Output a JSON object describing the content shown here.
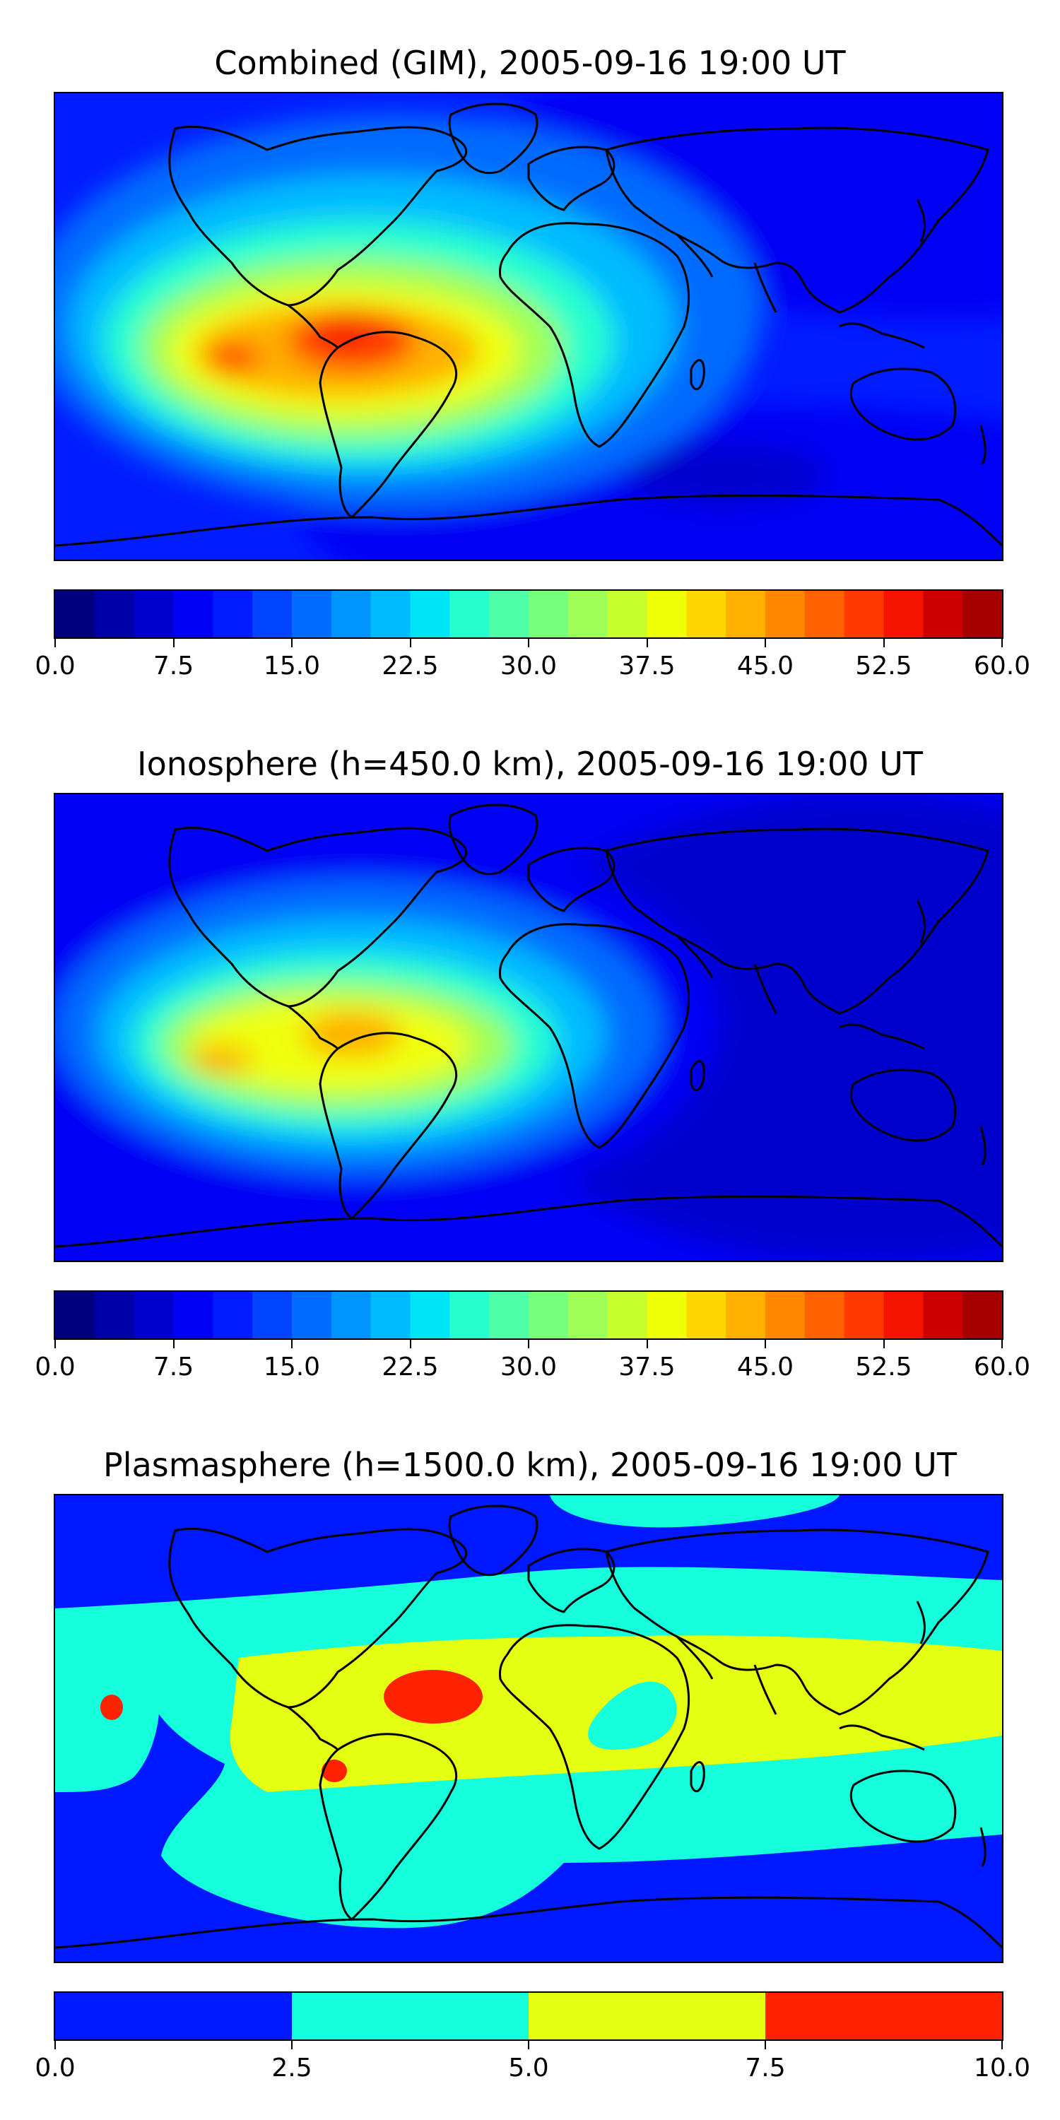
{
  "panels": [
    {
      "title": "Combined (GIM), 2005-09-16 19:00 UT",
      "colorbar": {
        "ticks": [
          "0.0",
          "7.5",
          "15.0",
          "22.5",
          "30.0",
          "37.5",
          "45.0",
          "52.5",
          "60.0"
        ],
        "range": [
          0,
          60
        ],
        "levels": 24
      }
    },
    {
      "title": "Ionosphere  (h=450.0 km), 2005-09-16 19:00 UT",
      "colorbar": {
        "ticks": [
          "0.0",
          "7.5",
          "15.0",
          "22.5",
          "30.0",
          "37.5",
          "45.0",
          "52.5",
          "60.0"
        ],
        "range": [
          0,
          60
        ],
        "levels": 24
      }
    },
    {
      "title": "Plasmasphere (h=1500.0 km), 2005-09-16 19:00 UT",
      "colorbar": {
        "ticks": [
          "0.0",
          "2.5",
          "5.0",
          "7.5",
          "10.0"
        ],
        "range": [
          0,
          10
        ],
        "levels": 4
      }
    }
  ],
  "colors": {
    "jet24": [
      "#00007f",
      "#0000a6",
      "#0000cd",
      "#0000f4",
      "#001cff",
      "#0044ff",
      "#006cff",
      "#0094ff",
      "#00bcff",
      "#00e4f7",
      "#27ffcf",
      "#4fffa7",
      "#77ff7f",
      "#9fff57",
      "#c7ff2f",
      "#efff07",
      "#ffd700",
      "#ffb000",
      "#ff8800",
      "#ff6100",
      "#ff3a00",
      "#f41200",
      "#cd0000",
      "#a60000"
    ],
    "plasma4": [
      "#0018ff",
      "#16ffdc",
      "#e4ff12",
      "#ff2200"
    ],
    "coast": "#000000"
  }
}
